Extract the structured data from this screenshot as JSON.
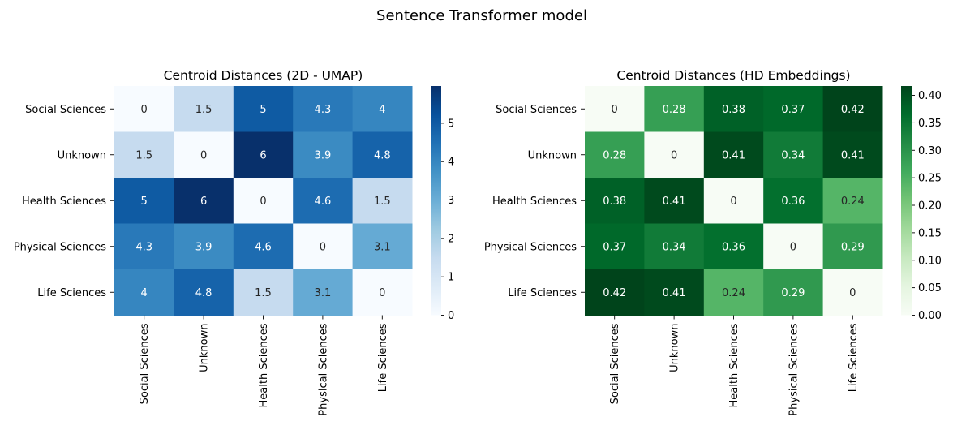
{
  "figure": {
    "suptitle": "Sentence Transformer model"
  },
  "chart_data": [
    {
      "type": "heatmap",
      "title": "Centroid Distances (2D - UMAP)",
      "xlabel": "",
      "ylabel": "",
      "row_labels": [
        "Social Sciences",
        "Unknown",
        "Health Sciences",
        "Physical Sciences",
        "Life Sciences"
      ],
      "col_labels": [
        "Social Sciences",
        "Unknown",
        "Health Sciences",
        "Physical Sciences",
        "Life Sciences"
      ],
      "values": [
        [
          0,
          1.5,
          5,
          4.3,
          4
        ],
        [
          1.5,
          0,
          6,
          3.9,
          4.8
        ],
        [
          5,
          6,
          0,
          4.6,
          1.5
        ],
        [
          4.3,
          3.9,
          4.6,
          0,
          3.1
        ],
        [
          4,
          4.8,
          1.5,
          3.1,
          0
        ]
      ],
      "cell_labels": [
        [
          "0",
          "1.5",
          "5",
          "4.3",
          "4"
        ],
        [
          "1.5",
          "0",
          "6",
          "3.9",
          "4.8"
        ],
        [
          "5",
          "6",
          "0",
          "4.6",
          "1.5"
        ],
        [
          "4.3",
          "3.9",
          "4.6",
          "0",
          "3.1"
        ],
        [
          "4",
          "4.8",
          "1.5",
          "3.1",
          "0"
        ]
      ],
      "colormap": "Blues",
      "color_stops": [
        "#f7fbff",
        "#deebf7",
        "#c6dbef",
        "#9ecae1",
        "#6baed6",
        "#4292c6",
        "#2171b5",
        "#08519c",
        "#08306b"
      ],
      "vmin": 0,
      "vmax": 5.97,
      "colorbar": {
        "ticks": [
          0,
          1,
          2,
          3,
          4,
          5
        ],
        "tick_labels": [
          "0",
          "1",
          "2",
          "3",
          "4",
          "5"
        ]
      }
    },
    {
      "type": "heatmap",
      "title": "Centroid Distances (HD Embeddings)",
      "xlabel": "",
      "ylabel": "",
      "row_labels": [
        "Social Sciences",
        "Unknown",
        "Health Sciences",
        "Physical Sciences",
        "Life Sciences"
      ],
      "col_labels": [
        "Social Sciences",
        "Unknown",
        "Health Sciences",
        "Physical Sciences",
        "Life Sciences"
      ],
      "values": [
        [
          0,
          0.28,
          0.38,
          0.37,
          0.42
        ],
        [
          0.28,
          0,
          0.41,
          0.34,
          0.41
        ],
        [
          0.38,
          0.41,
          0,
          0.36,
          0.24
        ],
        [
          0.37,
          0.34,
          0.36,
          0,
          0.29
        ],
        [
          0.42,
          0.41,
          0.24,
          0.29,
          0
        ]
      ],
      "cell_labels": [
        [
          "0",
          "0.28",
          "0.38",
          "0.37",
          "0.42"
        ],
        [
          "0.28",
          "0",
          "0.41",
          "0.34",
          "0.41"
        ],
        [
          "0.38",
          "0.41",
          "0",
          "0.36",
          "0.24"
        ],
        [
          "0.37",
          "0.34",
          "0.36",
          "0",
          "0.29"
        ],
        [
          "0.42",
          "0.41",
          "0.24",
          "0.29",
          "0"
        ]
      ],
      "colormap": "Greens",
      "color_stops": [
        "#f7fcf5",
        "#e5f5e0",
        "#c7e9c0",
        "#a1d99b",
        "#74c476",
        "#41ab5d",
        "#238b45",
        "#006d2c",
        "#00441b"
      ],
      "vmin": 0,
      "vmax": 0.417,
      "colorbar": {
        "ticks": [
          0,
          0.05,
          0.1,
          0.15,
          0.2,
          0.25,
          0.3,
          0.35,
          0.4
        ],
        "tick_labels": [
          "0.00",
          "0.05",
          "0.10",
          "0.15",
          "0.20",
          "0.25",
          "0.30",
          "0.35",
          "0.40"
        ]
      }
    }
  ]
}
